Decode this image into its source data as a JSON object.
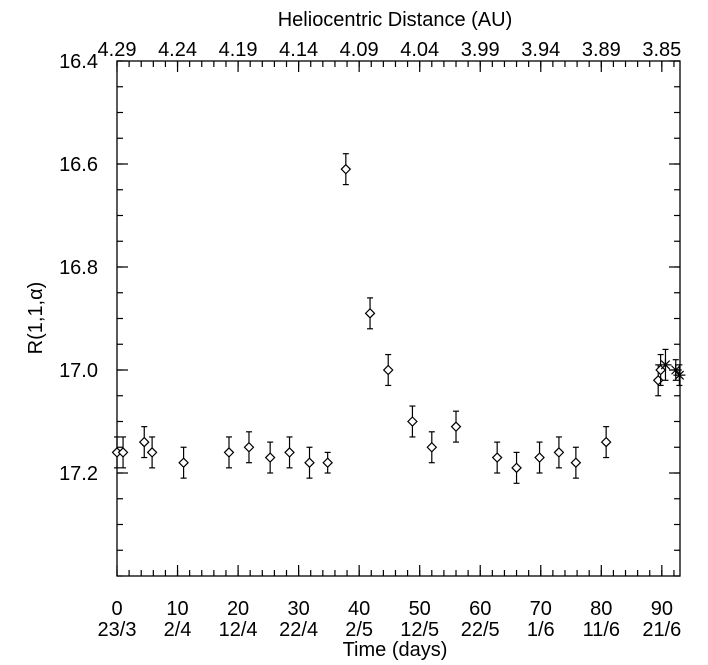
{
  "chart_data": {
    "type": "scatter",
    "title": "",
    "xlabel": "Time (days)",
    "ylabel": "R(1,1,α)",
    "top_xlabel": "Heliocentric Distance (AU)",
    "xlim": [
      0,
      93
    ],
    "ylim": [
      17.4,
      16.4
    ],
    "y_inverted": true,
    "grid": false,
    "x_ticks": [
      {
        "value": 0,
        "label": "0",
        "date": "23/3"
      },
      {
        "value": 10,
        "label": "10",
        "date": "2/4"
      },
      {
        "value": 20,
        "label": "20",
        "date": "12/4"
      },
      {
        "value": 30,
        "label": "30",
        "date": "22/4"
      },
      {
        "value": 40,
        "label": "40",
        "date": "2/5"
      },
      {
        "value": 50,
        "label": "50",
        "date": "12/5"
      },
      {
        "value": 60,
        "label": "60",
        "date": "22/5"
      },
      {
        "value": 70,
        "label": "70",
        "date": "1/6"
      },
      {
        "value": 80,
        "label": "80",
        "date": "11/6"
      },
      {
        "value": 90,
        "label": "90",
        "date": "21/6"
      }
    ],
    "x_minor_step": 2,
    "top_ticks": [
      {
        "value": 0,
        "label": "4.29"
      },
      {
        "value": 10,
        "label": "4.24"
      },
      {
        "value": 20,
        "label": "4.19"
      },
      {
        "value": 30,
        "label": "4.14"
      },
      {
        "value": 40,
        "label": "4.09"
      },
      {
        "value": 50,
        "label": "4.04"
      },
      {
        "value": 60,
        "label": "3.99"
      },
      {
        "value": 70,
        "label": "3.94"
      },
      {
        "value": 80,
        "label": "3.89"
      },
      {
        "value": 90,
        "label": "3.85"
      }
    ],
    "y_ticks": [
      {
        "value": 16.4,
        "label": "16.4"
      },
      {
        "value": 16.6,
        "label": "16.6"
      },
      {
        "value": 16.8,
        "label": "16.8"
      },
      {
        "value": 17.0,
        "label": "17.0"
      },
      {
        "value": 17.2,
        "label": "17.2"
      }
    ],
    "y_minor_step": 0.05,
    "series": [
      {
        "marker": "diamond",
        "points": [
          {
            "x": 0.0,
            "y": 17.16,
            "err": 0.03
          },
          {
            "x": 1.0,
            "y": 17.16,
            "err": 0.03
          },
          {
            "x": 4.5,
            "y": 17.14,
            "err": 0.03
          },
          {
            "x": 5.8,
            "y": 17.16,
            "err": 0.03
          },
          {
            "x": 11.0,
            "y": 17.18,
            "err": 0.03
          },
          {
            "x": 18.5,
            "y": 17.16,
            "err": 0.03
          },
          {
            "x": 21.8,
            "y": 17.15,
            "err": 0.03
          },
          {
            "x": 25.3,
            "y": 17.17,
            "err": 0.03
          },
          {
            "x": 28.5,
            "y": 17.16,
            "err": 0.03
          },
          {
            "x": 31.8,
            "y": 17.18,
            "err": 0.03
          },
          {
            "x": 34.8,
            "y": 17.18,
            "err": 0.02
          },
          {
            "x": 37.8,
            "y": 16.61,
            "err": 0.03
          },
          {
            "x": 41.8,
            "y": 16.89,
            "err": 0.03
          },
          {
            "x": 44.8,
            "y": 17.0,
            "err": 0.03
          },
          {
            "x": 48.8,
            "y": 17.1,
            "err": 0.03
          },
          {
            "x": 52.0,
            "y": 17.15,
            "err": 0.03
          },
          {
            "x": 56.0,
            "y": 17.11,
            "err": 0.03
          },
          {
            "x": 62.8,
            "y": 17.17,
            "err": 0.03
          },
          {
            "x": 66.0,
            "y": 17.19,
            "err": 0.03
          },
          {
            "x": 69.8,
            "y": 17.17,
            "err": 0.03
          },
          {
            "x": 73.0,
            "y": 17.16,
            "err": 0.03
          },
          {
            "x": 75.8,
            "y": 17.18,
            "err": 0.03
          },
          {
            "x": 80.8,
            "y": 17.14,
            "err": 0.03
          },
          {
            "x": 89.4,
            "y": 17.02,
            "err": 0.03
          },
          {
            "x": 89.8,
            "y": 17.0,
            "err": 0.03
          }
        ]
      },
      {
        "marker": "asterisk",
        "points": [
          {
            "x": 90.6,
            "y": 16.99,
            "err": 0.03
          },
          {
            "x": 92.3,
            "y": 17.0,
            "err": 0.02
          },
          {
            "x": 92.9,
            "y": 17.01,
            "err": 0.02
          }
        ]
      }
    ]
  }
}
